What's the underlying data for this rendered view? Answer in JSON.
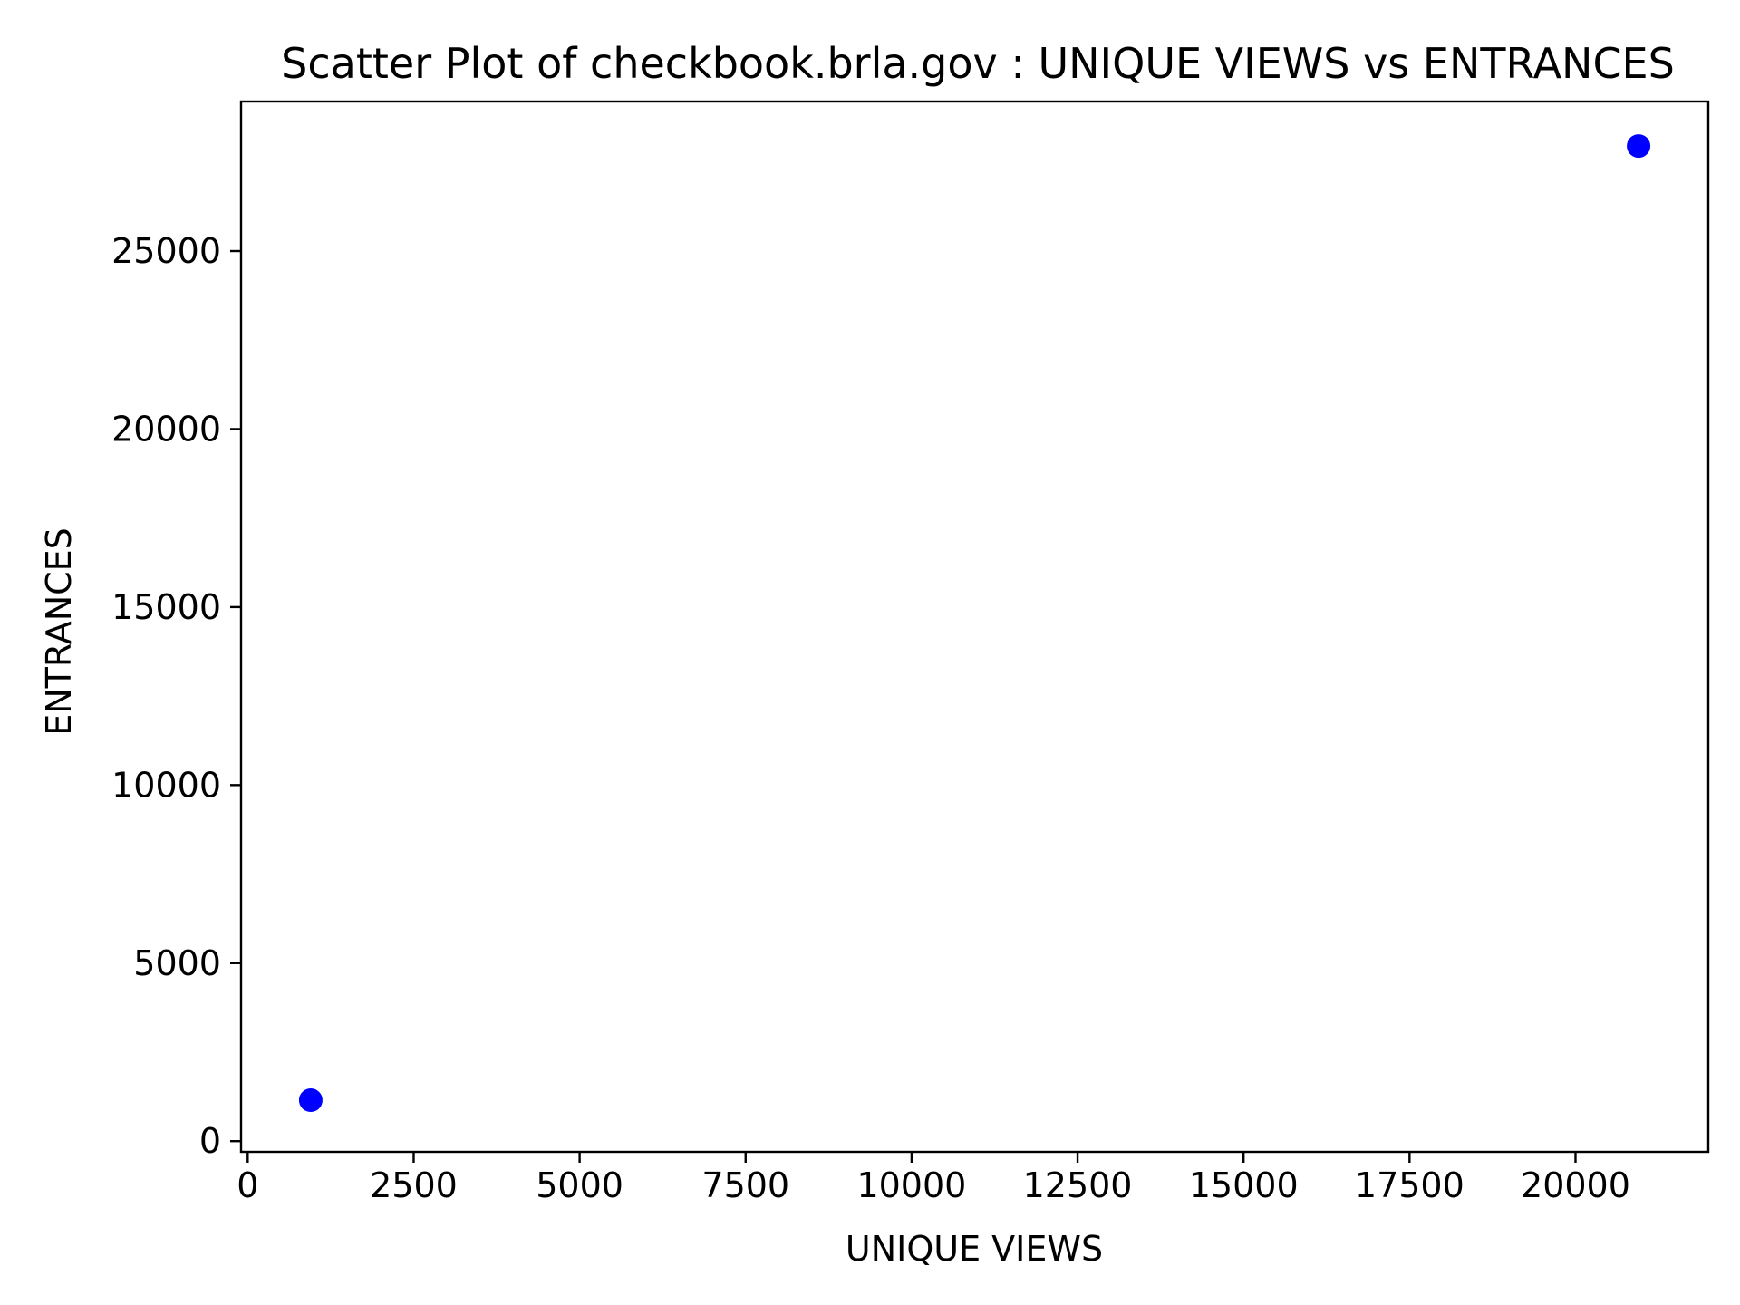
{
  "chart_data": {
    "type": "scatter",
    "title": "Scatter Plot of checkbook.brla.gov : UNIQUE VIEWS vs ENTRANCES",
    "xlabel": "UNIQUE VIEWS",
    "ylabel": "ENTRANCES",
    "xlim": [
      -100,
      22000
    ],
    "ylim": [
      -300,
      29200
    ],
    "xticks": [
      0,
      2500,
      5000,
      7500,
      10000,
      12500,
      15000,
      17500,
      20000
    ],
    "xtick_labels": [
      "0",
      "2500",
      "5000",
      "7500",
      "10000",
      "12500",
      "15000",
      "17500",
      "20000"
    ],
    "yticks": [
      0,
      5000,
      10000,
      15000,
      20000,
      25000
    ],
    "ytick_labels": [
      "0",
      "5000",
      "10000",
      "15000",
      "20000",
      "25000"
    ],
    "grid": false,
    "marker_color": "#0000ff",
    "points": [
      {
        "x": 950,
        "y": 1150
      },
      {
        "x": 20950,
        "y": 27950
      }
    ]
  }
}
